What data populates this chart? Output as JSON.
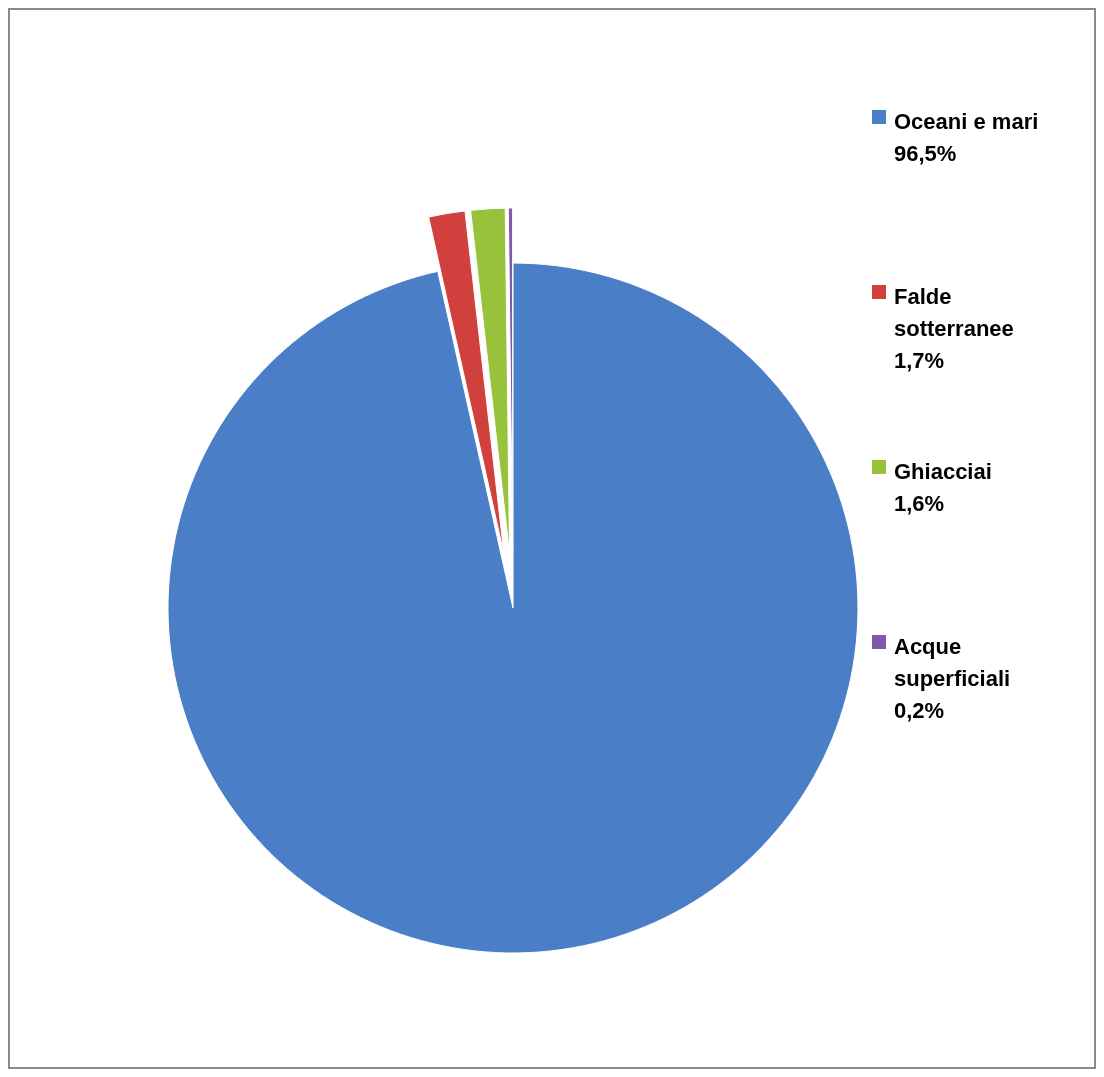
{
  "chart_data": {
    "type": "pie",
    "categories": [
      "Oceani e mari",
      "Falde sotterranee",
      "Ghiacciai",
      "Acque superficiali"
    ],
    "values": [
      96.5,
      1.7,
      1.6,
      0.2
    ],
    "value_labels": [
      "96,5%",
      "1,7%",
      "1,6%",
      "0,2%"
    ],
    "colors": [
      "#4a7fc8",
      "#d0403c",
      "#98c23c",
      "#7d5ba6"
    ],
    "legend": "right"
  }
}
